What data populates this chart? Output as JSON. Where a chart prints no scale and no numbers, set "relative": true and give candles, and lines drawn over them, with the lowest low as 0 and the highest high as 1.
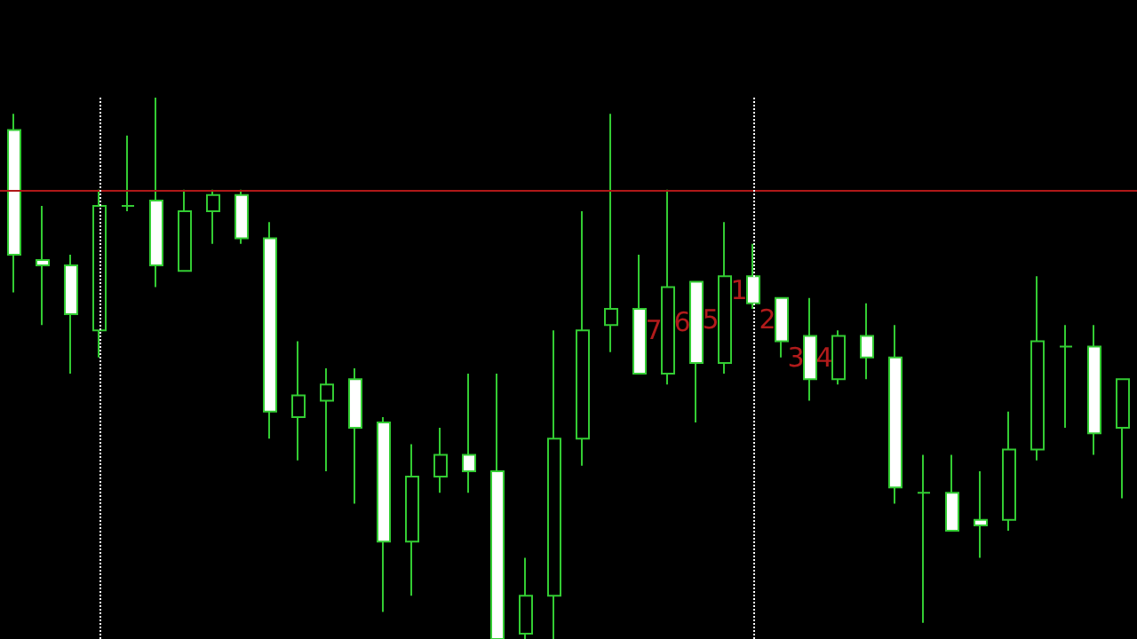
{
  "chart_data": {
    "type": "candlestick",
    "relative": true,
    "categories": [
      null,
      null,
      null,
      null,
      null,
      null,
      null,
      null,
      null,
      null,
      null,
      null,
      null,
      null,
      null,
      null,
      null,
      null,
      null,
      null,
      null,
      null,
      null,
      null,
      null,
      null,
      null,
      null,
      null,
      null,
      null,
      null,
      null,
      null,
      null,
      null,
      null,
      null,
      null,
      null
    ],
    "series": [
      {
        "color": "#33cc33",
        "ohlc": [
          [
            0.94,
            0.97,
            0.64,
            0.71
          ],
          [
            0.7,
            0.8,
            0.58,
            0.69
          ],
          [
            0.69,
            0.71,
            0.49,
            0.6
          ],
          [
            0.57,
            0.83,
            0.52,
            0.8
          ],
          [
            0.8,
            0.93,
            0.79,
            0.8
          ],
          [
            0.81,
            1.0,
            0.65,
            0.69
          ],
          [
            0.68,
            0.83,
            0.68,
            0.79
          ],
          [
            0.79,
            0.83,
            0.73,
            0.82
          ],
          [
            0.82,
            0.83,
            0.73,
            0.74
          ],
          [
            0.74,
            0.77,
            0.37,
            0.42
          ],
          [
            0.41,
            0.55,
            0.33,
            0.45
          ],
          [
            0.44,
            0.5,
            0.31,
            0.47
          ],
          [
            0.48,
            0.5,
            0.25,
            0.39
          ],
          [
            0.4,
            0.41,
            0.05,
            0.18
          ],
          [
            0.18,
            0.36,
            0.08,
            0.3
          ],
          [
            0.3,
            0.39,
            0.27,
            0.34
          ],
          [
            0.34,
            0.49,
            0.27,
            0.31
          ],
          [
            0.31,
            0.49,
            0,
            0
          ],
          [
            0.01,
            0.15,
            0,
            0.08
          ],
          [
            0.08,
            0.57,
            0,
            0.37
          ],
          [
            0.37,
            0.79,
            0.32,
            0.57
          ],
          [
            0.58,
            0.97,
            0.53,
            0.61
          ],
          [
            0.61,
            0.71,
            0.49,
            0.49
          ],
          [
            0.49,
            0.83,
            0.47,
            0.65
          ],
          [
            0.66,
            0.66,
            0.4,
            0.51
          ],
          [
            0.51,
            0.77,
            0.49,
            0.67
          ],
          [
            0.67,
            0.73,
            0.61,
            0.62
          ],
          [
            0.63,
            0.63,
            0.52,
            0.55
          ],
          [
            0.56,
            0.63,
            0.44,
            0.48
          ],
          [
            0.48,
            0.57,
            0.47,
            0.56
          ],
          [
            0.56,
            0.62,
            0.48,
            0.52
          ],
          [
            0.52,
            0.58,
            0.25,
            0.28
          ],
          [
            0.27,
            0.34,
            0.03,
            0.27
          ],
          [
            0.27,
            0.34,
            0.2,
            0.2
          ],
          [
            0.22,
            0.31,
            0.15,
            0.21
          ],
          [
            0.22,
            0.42,
            0.2,
            0.35
          ],
          [
            0.35,
            0.67,
            0.33,
            0.55
          ],
          [
            0.54,
            0.58,
            0.39,
            0.54
          ],
          [
            0.54,
            0.58,
            0.34,
            0.38
          ],
          [
            0.39,
            0.48,
            0.26,
            0.48
          ]
        ],
        "value_labels": [
          null,
          null,
          null,
          null,
          null,
          null,
          null,
          null,
          null,
          null,
          null,
          null,
          null,
          null,
          null,
          null,
          null,
          null,
          null,
          null,
          null,
          null,
          null,
          "7",
          "6",
          "5",
          "1",
          "2",
          "3",
          "4",
          null,
          null,
          null,
          null,
          null,
          null,
          null,
          null,
          null,
          null
        ]
      }
    ],
    "ref_lines": [
      {
        "axis": "y",
        "value": 0.83,
        "color": "#b01818"
      }
    ]
  }
}
